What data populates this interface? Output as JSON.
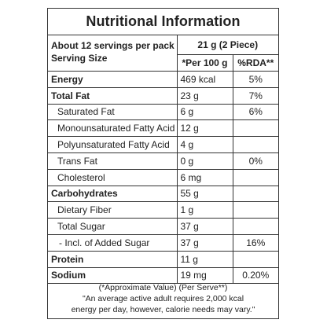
{
  "title": "Nutritional Information",
  "header": {
    "servings_line1": "About 12 servings per pack",
    "servings_line2": "Serving Size",
    "serve_size": "21 g (2 Piece)",
    "per100_label": "*Per 100 g",
    "rda_label": "%RDA**"
  },
  "rows": [
    {
      "name": "Energy",
      "value": "469 kcal",
      "rda": "5%"
    },
    {
      "name": "Total Fat",
      "value": "23 g",
      "rda": "7%"
    },
    {
      "name": "Saturated Fat",
      "value": "6 g",
      "rda": "6%"
    },
    {
      "name": "Monounsaturated Fatty Acid",
      "value": "12 g",
      "rda": ""
    },
    {
      "name": "Polyunsaturated Fatty Acid",
      "value": "4 g",
      "rda": ""
    },
    {
      "name": "Trans Fat",
      "value": "0 g",
      "rda": "0%"
    },
    {
      "name": "Cholesterol",
      "value": "6 mg",
      "rda": ""
    },
    {
      "name": "Carbohydrates",
      "value": "55 g",
      "rda": ""
    },
    {
      "name": "Dietary Fiber",
      "value": "1 g",
      "rda": ""
    },
    {
      "name": "Total Sugar",
      "value": "37 g",
      "rda": ""
    },
    {
      "name": "- Incl. of Added Sugar",
      "value": "37 g",
      "rda": "16%"
    },
    {
      "name": "Protein",
      "value": "11 g",
      "rda": ""
    },
    {
      "name": "Sodium",
      "value": "19 mg",
      "rda": "0.20%"
    }
  ],
  "footer": {
    "line1": "(*Approximate Value) (Per Serve**)",
    "line2": "\"An average active adult requires 2,000 kcal",
    "line3": "energy per day, however, calorie needs may vary.\""
  }
}
